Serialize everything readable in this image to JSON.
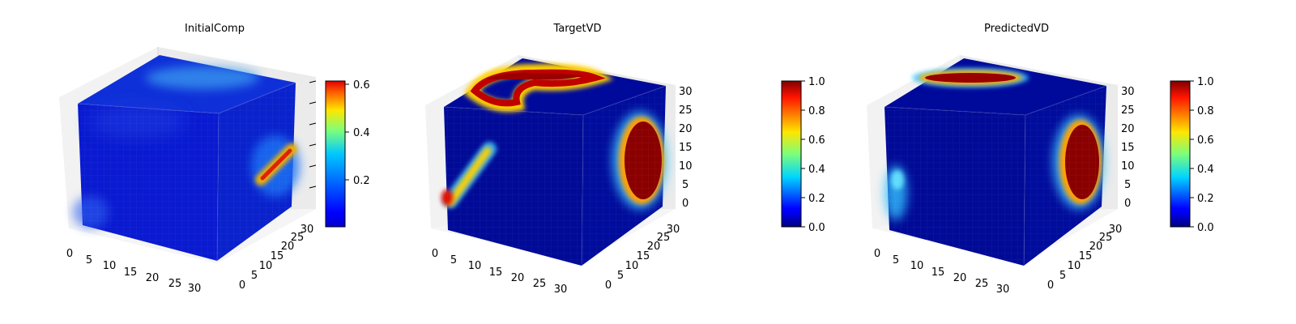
{
  "chart_data": [
    {
      "type": "heatmap",
      "title": "InitialComp",
      "x_ticks": [
        "0",
        "5",
        "10",
        "15",
        "20",
        "25",
        "30"
      ],
      "y_ticks": [
        "0",
        "5",
        "10",
        "15",
        "20",
        "25",
        "30"
      ],
      "z_ticks": [],
      "colorbar": {
        "colormap": "jet",
        "range": [
          0.02,
          0.61
        ],
        "ticks": [
          "0.2",
          "0.4",
          "0.6"
        ]
      },
      "hotspots": [
        {
          "face": "top",
          "description": "light blue streak near back edge",
          "peak": 0.2
        },
        {
          "face": "right",
          "description": "red stripe",
          "peak": 0.6
        },
        {
          "face": "front",
          "description": "faint lighter areas at corners",
          "peak": 0.15
        }
      ]
    },
    {
      "type": "heatmap",
      "title": "TargetVD",
      "x_ticks": [
        "0",
        "5",
        "10",
        "15",
        "20",
        "25",
        "30"
      ],
      "y_ticks": [
        "0",
        "5",
        "10",
        "15",
        "20",
        "25",
        "30"
      ],
      "z_ticks": [
        "0",
        "5",
        "10",
        "15",
        "20",
        "25",
        "30"
      ],
      "colorbar": {
        "colormap": "jet",
        "range": [
          0.0,
          1.0
        ],
        "ticks": [
          "0.0",
          "0.2",
          "0.4",
          "0.6",
          "0.8",
          "1.0"
        ]
      },
      "hotspots": [
        {
          "face": "top",
          "description": "dark red ring / triangle",
          "peak": 1.0
        },
        {
          "face": "front",
          "description": "diagonal streak bottom-left",
          "peak": 0.9
        },
        {
          "face": "right",
          "description": "large dark red oval",
          "peak": 1.0
        }
      ]
    },
    {
      "type": "heatmap",
      "title": "PredictedVD",
      "x_ticks": [
        "0",
        "5",
        "10",
        "15",
        "20",
        "25",
        "30"
      ],
      "y_ticks": [
        "0",
        "5",
        "10",
        "15",
        "20",
        "25",
        "30"
      ],
      "z_ticks": [
        "0",
        "5",
        "10",
        "15",
        "20",
        "25",
        "30"
      ],
      "colorbar": {
        "colormap": "jet",
        "range": [
          0.0,
          1.0
        ],
        "ticks": [
          "0.0",
          "0.2",
          "0.4",
          "0.6",
          "0.8",
          "1.0"
        ]
      },
      "hotspots": [
        {
          "face": "top",
          "description": "dark red elongated blob",
          "peak": 1.0
        },
        {
          "face": "front",
          "description": "cyan patch lower-left",
          "peak": 0.4
        },
        {
          "face": "right",
          "description": "large dark red oval",
          "peak": 1.0
        }
      ]
    }
  ]
}
